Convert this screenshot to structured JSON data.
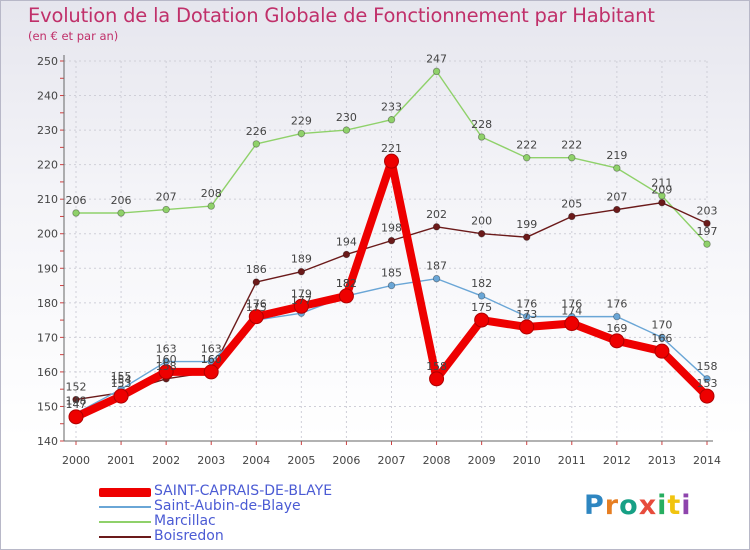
{
  "chart_data": {
    "type": "line",
    "title": "Evolution de la Dotation Globale de Fonctionnement par Habitant",
    "subtitle": "(en € et par an)",
    "categories": [
      "2000",
      "2001",
      "2002",
      "2003",
      "2004",
      "2005",
      "2006",
      "2007",
      "2008",
      "2009",
      "2010",
      "2011",
      "2012",
      "2013",
      "2014"
    ],
    "ylim": [
      140,
      250
    ],
    "yticks": [
      140,
      150,
      160,
      170,
      180,
      190,
      200,
      210,
      220,
      230,
      240,
      250
    ],
    "grid": true,
    "legend_position": "bottom-left",
    "series": [
      {
        "name": "Marcillac",
        "color": "#8fd16a",
        "values": [
          206,
          206,
          207,
          208,
          226,
          229,
          230,
          233,
          247,
          228,
          222,
          222,
          219,
          211,
          197
        ]
      },
      {
        "name": "Boisredon",
        "color": "#6b1a1a",
        "values": [
          152,
          154,
          158,
          160,
          186,
          189,
          194,
          198,
          202,
          200,
          199,
          205,
          207,
          209,
          203
        ]
      },
      {
        "name": "Saint-Aubin-de-Blaye",
        "color": "#6aa6d6",
        "values": [
          148,
          155,
          163,
          163,
          175,
          177,
          182,
          185,
          187,
          182,
          176,
          176,
          176,
          170,
          158
        ]
      },
      {
        "name": "SAINT-CAPRAIS-DE-BLAYE",
        "color": "#ee0000",
        "values": [
          147,
          153,
          160,
          160,
          176,
          179,
          182,
          221,
          158,
          175,
          173,
          174,
          169,
          166,
          153
        ]
      }
    ]
  },
  "legend": [
    {
      "label": "SAINT-CAPRAIS-DE-BLAYE",
      "color": "#ee0000",
      "weight": 9
    },
    {
      "label": "Saint-Aubin-de-Blaye",
      "color": "#6aa6d6",
      "weight": 2
    },
    {
      "label": "Marcillac",
      "color": "#8fd16a",
      "weight": 2
    },
    {
      "label": "Boisredon",
      "color": "#6b1a1a",
      "weight": 2
    }
  ],
  "logo": {
    "letters": [
      "P",
      "r",
      "o",
      "x",
      "i",
      "t",
      "i"
    ]
  }
}
